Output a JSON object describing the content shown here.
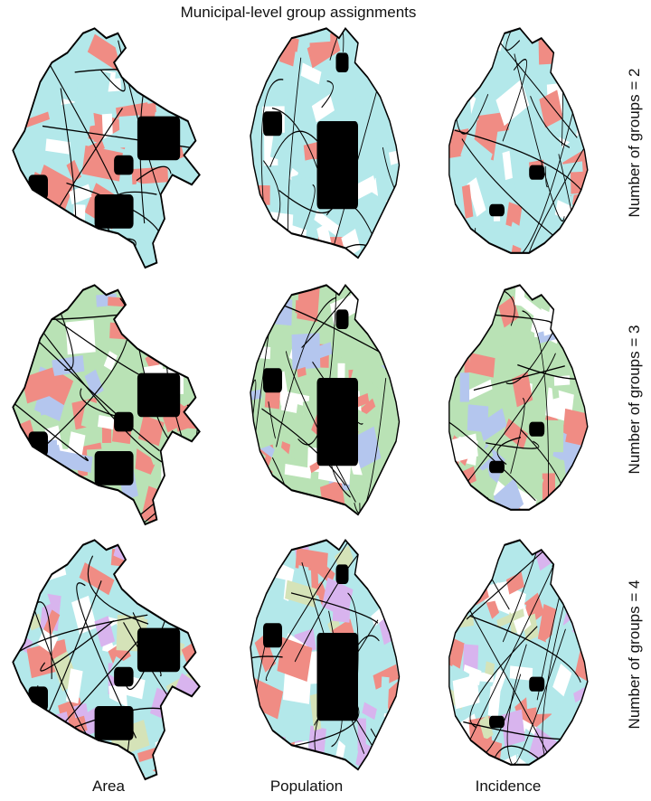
{
  "figure": {
    "title": "Municipal-level group assignments",
    "columns": [
      "Area",
      "Population",
      "Incidence"
    ],
    "rows": [
      "Number of groups = 2",
      "Number of groups = 3",
      "Number of groups = 4"
    ],
    "colors": {
      "outline": "#000000",
      "no_data": "#000000",
      "group_cyan": "#b3e8ea",
      "group_red": "#f08c84",
      "group_green": "#b9e2b5",
      "group_blue": "#b4c6ee",
      "group_purple": "#d8b4ee",
      "group_olive": "#d5e3b8",
      "white": "#ffffff"
    }
  }
}
